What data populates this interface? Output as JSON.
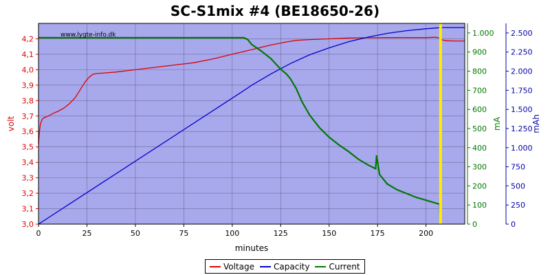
{
  "chart_data": {
    "type": "line",
    "title": "SC-S1mix #4 (BE18650-26)",
    "watermark": "www.lygte-info.dk",
    "xlabel": "minutes",
    "xlim": [
      0,
      220
    ],
    "x_ticks": [
      "0",
      "25",
      "50",
      "75",
      "100",
      "125",
      "150",
      "175",
      "200"
    ],
    "x_tick_values": [
      0,
      25,
      50,
      75,
      100,
      125,
      150,
      175,
      200
    ],
    "axes": {
      "voltage": {
        "label": "volt",
        "color": "#dd0000",
        "ylim": [
          3.0,
          4.3
        ],
        "ticks": [
          "3,0",
          "3,1",
          "3,2",
          "3,3",
          "3,4",
          "3,5",
          "3,6",
          "3,7",
          "3,8",
          "3,9",
          "4,0",
          "4,1",
          "4,2"
        ],
        "tick_values": [
          3.0,
          3.1,
          3.2,
          3.3,
          3.4,
          3.5,
          3.6,
          3.7,
          3.8,
          3.9,
          4.0,
          4.1,
          4.2
        ]
      },
      "current": {
        "label": "mA",
        "color": "#007700",
        "ylim": [
          0,
          1050
        ],
        "ticks": [
          "0",
          "100",
          "200",
          "300",
          "400",
          "500",
          "600",
          "700",
          "800",
          "900",
          "1.000"
        ],
        "tick_values": [
          0,
          100,
          200,
          300,
          400,
          500,
          600,
          700,
          800,
          900,
          1000
        ]
      },
      "capacity": {
        "label": "mAh",
        "color": "#0000aa",
        "ylim": [
          0,
          2625
        ],
        "ticks": [
          "0",
          "250",
          "500",
          "750",
          "1.000",
          "1.250",
          "1.500",
          "1.750",
          "2.000",
          "2.250",
          "2.500"
        ],
        "tick_values": [
          0,
          250,
          500,
          750,
          1000,
          1250,
          1500,
          1750,
          2000,
          2250,
          2500
        ]
      }
    },
    "grid": true,
    "background_color": "#a8a8ec",
    "end_marker": {
      "x": 207.5,
      "color": "#ffee00"
    },
    "legend_position": "bottom-center",
    "series": [
      {
        "name": "Voltage",
        "axis": "voltage",
        "color": "#dd0000",
        "x": [
          0,
          0.5,
          1,
          2,
          3,
          5,
          8,
          10,
          13,
          16,
          19,
          22,
          24,
          26,
          28,
          30,
          35,
          40,
          50,
          60,
          70,
          80,
          90,
          100,
          110,
          120,
          128,
          133,
          140,
          150,
          160,
          170,
          180,
          190,
          200,
          205,
          207,
          208,
          210,
          215,
          220
        ],
        "values": [
          3.52,
          3.6,
          3.65,
          3.68,
          3.69,
          3.7,
          3.72,
          3.73,
          3.75,
          3.78,
          3.82,
          3.88,
          3.92,
          3.95,
          3.97,
          3.975,
          3.98,
          3.985,
          4.0,
          4.015,
          4.03,
          4.045,
          4.07,
          4.1,
          4.13,
          4.16,
          4.18,
          4.19,
          4.195,
          4.2,
          4.205,
          4.207,
          4.208,
          4.208,
          4.208,
          4.21,
          4.205,
          4.195,
          4.188,
          4.186,
          4.186
        ]
      },
      {
        "name": "Capacity",
        "axis": "capacity",
        "color": "#0000cc",
        "x": [
          0,
          105,
          110,
          120,
          130,
          140,
          150,
          160,
          170,
          180,
          190,
          200,
          207,
          208,
          220
        ],
        "values": [
          0,
          1730,
          1815,
          1965,
          2100,
          2215,
          2305,
          2385,
          2445,
          2495,
          2530,
          2555,
          2568,
          2570,
          2570
        ]
      },
      {
        "name": "Current",
        "axis": "current",
        "color": "#007700",
        "x": [
          0,
          20,
          40,
          60,
          80,
          100,
          106,
          108,
          110,
          115,
          120,
          125,
          128,
          130,
          133,
          136,
          140,
          145,
          150,
          155,
          160,
          165,
          170,
          174,
          174.5,
          176,
          180,
          185,
          190,
          195,
          200,
          205,
          207,
          207.3
        ],
        "values": [
          975,
          975,
          975,
          975,
          975,
          975,
          975,
          965,
          940,
          905,
          865,
          810,
          785,
          760,
          710,
          640,
          570,
          505,
          455,
          415,
          380,
          340,
          310,
          290,
          360,
          260,
          210,
          180,
          160,
          140,
          125,
          110,
          105,
          0
        ]
      }
    ],
    "legend": [
      "Voltage",
      "Capacity",
      "Current"
    ]
  }
}
